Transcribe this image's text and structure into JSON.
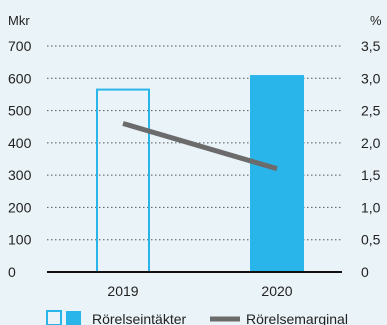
{
  "chart_data": {
    "type": "bar",
    "categories": [
      "2019",
      "2020"
    ],
    "series": [
      {
        "name": "Rörelseintäkter",
        "axis": "left",
        "values": [
          565,
          610
        ],
        "styles": [
          "outline",
          "filled"
        ]
      },
      {
        "name": "Rörelsemarginal",
        "axis": "right",
        "kind": "line",
        "values": [
          2.3,
          1.6
        ]
      }
    ],
    "left_axis": {
      "unit": "Mkr",
      "range": [
        0,
        700
      ],
      "ticks": [
        0,
        100,
        200,
        300,
        400,
        500,
        600,
        700
      ],
      "tick_labels": [
        "0",
        "100",
        "200",
        "300",
        "400",
        "500",
        "600",
        "700"
      ]
    },
    "right_axis": {
      "unit": "%",
      "range": [
        0,
        3.5
      ],
      "ticks": [
        0,
        0.5,
        1.0,
        1.5,
        2.0,
        2.5,
        3.0,
        3.5
      ],
      "tick_labels": [
        "0",
        "0,5",
        "1,0",
        "1,5",
        "2,0",
        "2,5",
        "3,0",
        "3,5"
      ]
    },
    "grid": "dotted-horizontal",
    "legend_position": "bottom",
    "colors": {
      "bar": "#29b5ea",
      "line": "#6b6b6b",
      "axis": "#111111",
      "grid": "#555555",
      "background": "#eaf3f8"
    }
  }
}
